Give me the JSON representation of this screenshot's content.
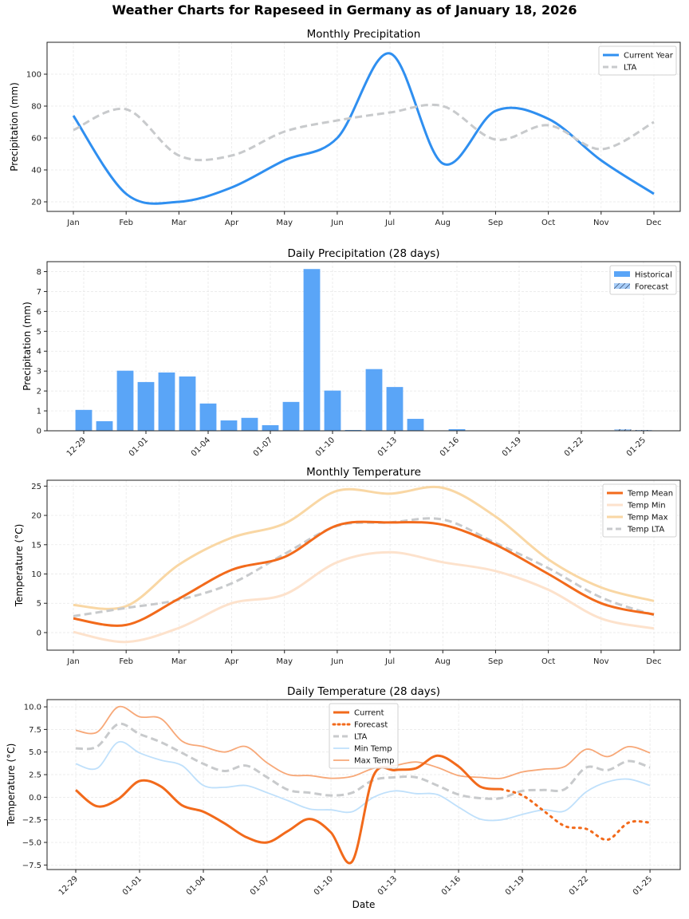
{
  "figure": {
    "suptitle": "Weather Charts for Rapeseed in Germany as of January 18, 2026"
  },
  "colors": {
    "precip_current": "#2f8ff0",
    "precip_lta": "#c8cacc",
    "bar_historical": "#5aa5f7",
    "bar_forecast": "#a7cdf8",
    "temp_mean": "#f26a1b",
    "temp_min": "#fde2cc",
    "temp_max": "#f9d7a4",
    "temp_lta": "#c8cacc",
    "daily_current": "#f26a1b",
    "daily_min": "#bfe0fb",
    "daily_max": "#f7a878"
  },
  "chart_data": [
    {
      "id": "monthly_precip",
      "type": "line",
      "title": "Monthly Precipitation",
      "xlabel": "",
      "ylabel": "Precipitation (mm)",
      "categories": [
        "Jan",
        "Feb",
        "Mar",
        "Apr",
        "May",
        "Jun",
        "Jul",
        "Aug",
        "Sep",
        "Oct",
        "Nov",
        "Dec"
      ],
      "ylim": [
        14,
        120
      ],
      "yticks": [
        20,
        40,
        60,
        80,
        100
      ],
      "grid": true,
      "legend": "top-right",
      "series": [
        {
          "name": "Current Year",
          "style": "solid",
          "values": [
            74,
            25,
            20,
            29,
            46,
            60,
            113,
            44,
            77,
            72,
            46,
            25
          ]
        },
        {
          "name": "LTA",
          "style": "dashed",
          "values": [
            65,
            78,
            49,
            49,
            64,
            71,
            76,
            80,
            59,
            68,
            53,
            70
          ]
        }
      ]
    },
    {
      "id": "daily_precip",
      "type": "bar",
      "title": "Daily Precipitation (28 days)",
      "xlabel": "",
      "ylabel": "Precipitation (mm)",
      "categories": [
        "12-29",
        "12-30",
        "12-31",
        "01-01",
        "01-02",
        "01-03",
        "01-04",
        "01-05",
        "01-06",
        "01-07",
        "01-08",
        "01-09",
        "01-10",
        "01-11",
        "01-12",
        "01-13",
        "01-14",
        "01-15",
        "01-16",
        "01-17",
        "01-18",
        "01-19",
        "01-20",
        "01-21",
        "01-22",
        "01-23",
        "01-24",
        "01-25"
      ],
      "xticks": [
        "12-29",
        "01-01",
        "01-04",
        "01-07",
        "01-10",
        "01-13",
        "01-16",
        "01-19",
        "01-22",
        "01-25"
      ],
      "ylim": [
        0,
        8.5
      ],
      "yticks": [
        0,
        1,
        2,
        3,
        4,
        5,
        6,
        7,
        8
      ],
      "grid": true,
      "legend": "top-right",
      "series": [
        {
          "name": "Historical",
          "values": [
            1.05,
            0.48,
            3.02,
            2.45,
            2.93,
            2.73,
            1.37,
            0.52,
            0.65,
            0.28,
            1.45,
            8.13,
            2.02,
            0.04,
            3.1,
            2.2,
            0.6,
            0.0,
            0.08,
            0.0,
            0.0,
            null,
            null,
            null,
            null,
            null,
            null,
            null
          ]
        },
        {
          "name": "Forecast",
          "values": [
            null,
            null,
            null,
            null,
            null,
            null,
            null,
            null,
            null,
            null,
            null,
            null,
            null,
            null,
            null,
            null,
            null,
            null,
            null,
            null,
            null,
            0.0,
            0.0,
            0.0,
            0.0,
            0.0,
            0.08,
            0.04
          ]
        }
      ]
    },
    {
      "id": "monthly_temp",
      "type": "line",
      "title": "Monthly Temperature",
      "xlabel": "",
      "ylabel": "Temperature (°C)",
      "categories": [
        "Jan",
        "Feb",
        "Mar",
        "Apr",
        "May",
        "Jun",
        "Jul",
        "Aug",
        "Sep",
        "Oct",
        "Nov",
        "Dec"
      ],
      "ylim": [
        -3,
        26
      ],
      "yticks": [
        0,
        5,
        10,
        15,
        20,
        25
      ],
      "grid": true,
      "legend": "top-right",
      "series": [
        {
          "name": "Temp Mean",
          "style": "solid",
          "values": [
            2.4,
            1.3,
            5.8,
            10.7,
            12.9,
            18.3,
            18.8,
            18.4,
            15.0,
            10.0,
            5.0,
            3.1
          ]
        },
        {
          "name": "Temp Min",
          "style": "solid",
          "values": [
            0.1,
            -1.6,
            0.8,
            5.0,
            6.5,
            12.0,
            13.7,
            12.0,
            10.5,
            7.3,
            2.4,
            0.7
          ]
        },
        {
          "name": "Temp Max",
          "style": "solid",
          "values": [
            4.7,
            4.5,
            11.6,
            16.2,
            18.6,
            24.2,
            23.7,
            24.7,
            19.8,
            12.5,
            7.7,
            5.4
          ]
        },
        {
          "name": "Temp LTA",
          "style": "dashed",
          "values": [
            2.8,
            4.2,
            5.6,
            8.4,
            13.4,
            18.2,
            18.8,
            19.3,
            15.3,
            11.0,
            6.0,
            3.0
          ]
        }
      ]
    },
    {
      "id": "daily_temp",
      "type": "line",
      "title": "Daily Temperature (28 days)",
      "xlabel": "Date",
      "ylabel": "Temperature (°C)",
      "categories": [
        "12-29",
        "12-30",
        "12-31",
        "01-01",
        "01-02",
        "01-03",
        "01-04",
        "01-05",
        "01-06",
        "01-07",
        "01-08",
        "01-09",
        "01-10",
        "01-11",
        "01-12",
        "01-13",
        "01-14",
        "01-15",
        "01-16",
        "01-17",
        "01-18",
        "01-19",
        "01-20",
        "01-21",
        "01-22",
        "01-23",
        "01-24",
        "01-25"
      ],
      "xticks": [
        "12-29",
        "01-01",
        "01-04",
        "01-07",
        "01-10",
        "01-13",
        "01-16",
        "01-19",
        "01-22",
        "01-25"
      ],
      "ylim": [
        -8,
        10.8
      ],
      "yticks": [
        -7.5,
        -5.0,
        -2.5,
        0.0,
        2.5,
        5.0,
        7.5,
        10.0
      ],
      "grid": true,
      "legend": "upper-center",
      "series": [
        {
          "name": "Current",
          "style": "solid",
          "values": [
            0.8,
            -1.0,
            -0.2,
            1.8,
            1.2,
            -0.9,
            -1.6,
            -2.9,
            -4.4,
            -5.0,
            -3.7,
            -2.4,
            -3.9,
            -7.1,
            2.4,
            3.0,
            3.2,
            4.6,
            3.4,
            1.2,
            0.9,
            null,
            null,
            null,
            null,
            null,
            null,
            null
          ]
        },
        {
          "name": "Forecast",
          "style": "dotted",
          "values": [
            null,
            null,
            null,
            null,
            null,
            null,
            null,
            null,
            null,
            null,
            null,
            null,
            null,
            null,
            null,
            null,
            null,
            null,
            null,
            null,
            0.9,
            0.2,
            -1.5,
            -3.2,
            -3.5,
            -4.7,
            -2.8,
            -2.8
          ]
        },
        {
          "name": "LTA",
          "style": "dashed",
          "values": [
            5.4,
            5.6,
            8.1,
            7.0,
            6.1,
            4.9,
            3.7,
            2.9,
            3.5,
            2.2,
            0.8,
            0.5,
            0.2,
            0.5,
            1.9,
            2.2,
            2.2,
            1.3,
            0.3,
            -0.1,
            -0.1,
            0.7,
            0.8,
            0.9,
            3.3,
            3.0,
            4.0,
            3.3
          ]
        },
        {
          "name": "Min Temp",
          "style": "solid",
          "values": [
            3.7,
            3.2,
            6.1,
            4.9,
            4.1,
            3.5,
            1.3,
            1.1,
            1.3,
            0.5,
            -0.4,
            -1.3,
            -1.4,
            -1.6,
            0.0,
            0.7,
            0.4,
            0.3,
            -1.1,
            -2.4,
            -2.5,
            -1.9,
            -1.4,
            -1.5,
            0.6,
            1.7,
            2.0,
            1.3
          ]
        },
        {
          "name": "Max Temp",
          "style": "solid",
          "values": [
            7.4,
            7.2,
            10.0,
            8.9,
            8.7,
            6.2,
            5.6,
            5.0,
            5.6,
            3.8,
            2.5,
            2.4,
            2.1,
            2.3,
            3.2,
            3.5,
            3.9,
            3.3,
            2.4,
            2.2,
            2.1,
            2.8,
            3.1,
            3.4,
            5.3,
            4.5,
            5.6,
            4.9
          ]
        }
      ]
    }
  ]
}
